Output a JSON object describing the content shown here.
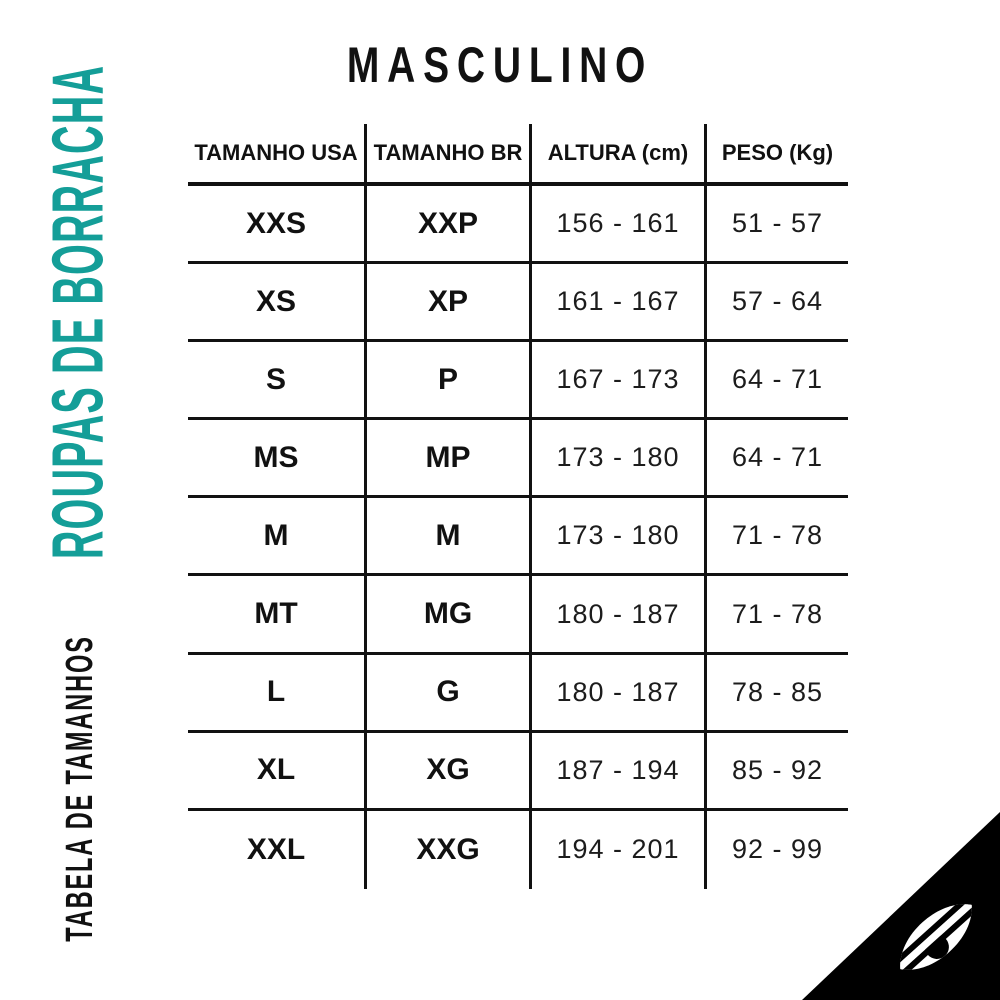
{
  "page_title": "MASCULINO",
  "sidebar": {
    "primary_label": "ROUPAS DE BORRACHA",
    "secondary_label": "TABELA DE TAMANHOS"
  },
  "table": {
    "columns": [
      "TAMANHO USA",
      "TAMANHO BR",
      "ALTURA (cm)",
      "PESO (Kg)"
    ],
    "rows": [
      [
        "XXS",
        "XXP",
        "156 - 161",
        "51 - 57"
      ],
      [
        "XS",
        "XP",
        "161 - 167",
        "57 - 64"
      ],
      [
        "S",
        "P",
        "167 - 173",
        "64 - 71"
      ],
      [
        "MS",
        "MP",
        "173 - 180",
        "64 - 71"
      ],
      [
        "M",
        "M",
        "173 - 180",
        "71 - 78"
      ],
      [
        "MT",
        "MG",
        "180 - 187",
        "71 - 78"
      ],
      [
        "L",
        "G",
        "180 - 187",
        "78 - 85"
      ],
      [
        "XL",
        "XG",
        "187 - 194",
        "85 - 92"
      ],
      [
        "XXL",
        "XXG",
        "194 - 201",
        "92 - 99"
      ]
    ]
  },
  "branding": {
    "logo_icon": "wave-eye-brand-logo"
  },
  "colors": {
    "accent_teal": "#149e98",
    "text_black": "#111111",
    "line_black": "#111111",
    "logo_bg": "#000000",
    "logo_fg": "#ffffff"
  }
}
